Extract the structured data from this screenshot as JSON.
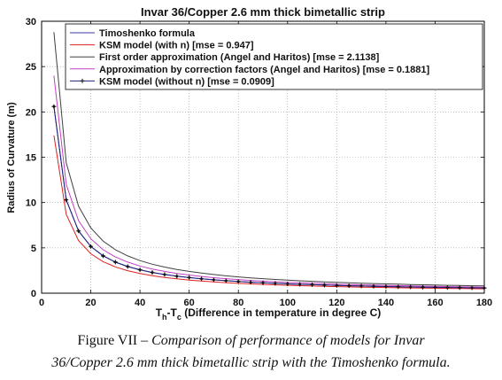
{
  "chart_data": {
    "type": "line",
    "title": "Invar 36/Copper 2.6 mm thick bimetallic strip",
    "xlabel_main": "T",
    "xlabel_sub1": "h",
    "xlabel_mid": "-T",
    "xlabel_sub2": "c",
    "xlabel_rest": " (Difference in temperature in degree C)",
    "ylabel": "Radius of Curvature (m)",
    "xlim": [
      0,
      180
    ],
    "ylim": [
      0,
      30
    ],
    "xticks": [
      0,
      20,
      40,
      60,
      80,
      100,
      120,
      140,
      160,
      180
    ],
    "yticks": [
      0,
      5,
      10,
      15,
      20,
      25,
      30
    ],
    "grid": true,
    "legend_position": "top-right",
    "x": [
      5,
      10,
      15,
      20,
      25,
      30,
      35,
      40,
      45,
      50,
      55,
      60,
      65,
      70,
      75,
      80,
      85,
      90,
      95,
      100,
      105,
      110,
      115,
      120,
      125,
      130,
      135,
      140,
      145,
      150,
      155,
      160,
      165,
      170,
      175,
      180
    ],
    "series": [
      {
        "name": "Timoshenko formula",
        "color": "#3a3aa0",
        "marker": false,
        "k": 103
      },
      {
        "name": "KSM model (with n) [mse = 0.947]",
        "color": "#e02020",
        "marker": false,
        "k": 87
      },
      {
        "name": "First order approximation (Angel and Haritos) [mse = 2.1138]",
        "color": "#404040",
        "marker": false,
        "k": 144
      },
      {
        "name": "Approximation by correction factors (Angel and Haritos) [mse = 0.1881]",
        "color": "#c040c0",
        "marker": false,
        "k": 120
      },
      {
        "name": "KSM model (without n) [mse = 0.0909]",
        "color": "#202080",
        "marker": true,
        "k": 103
      }
    ]
  },
  "caption": {
    "label": "Figure VII – ",
    "line1": "Comparison of performance of models for Invar",
    "line2": "36/Copper 2.6 mm thick bimetallic strip with the Timoshenko formula."
  }
}
